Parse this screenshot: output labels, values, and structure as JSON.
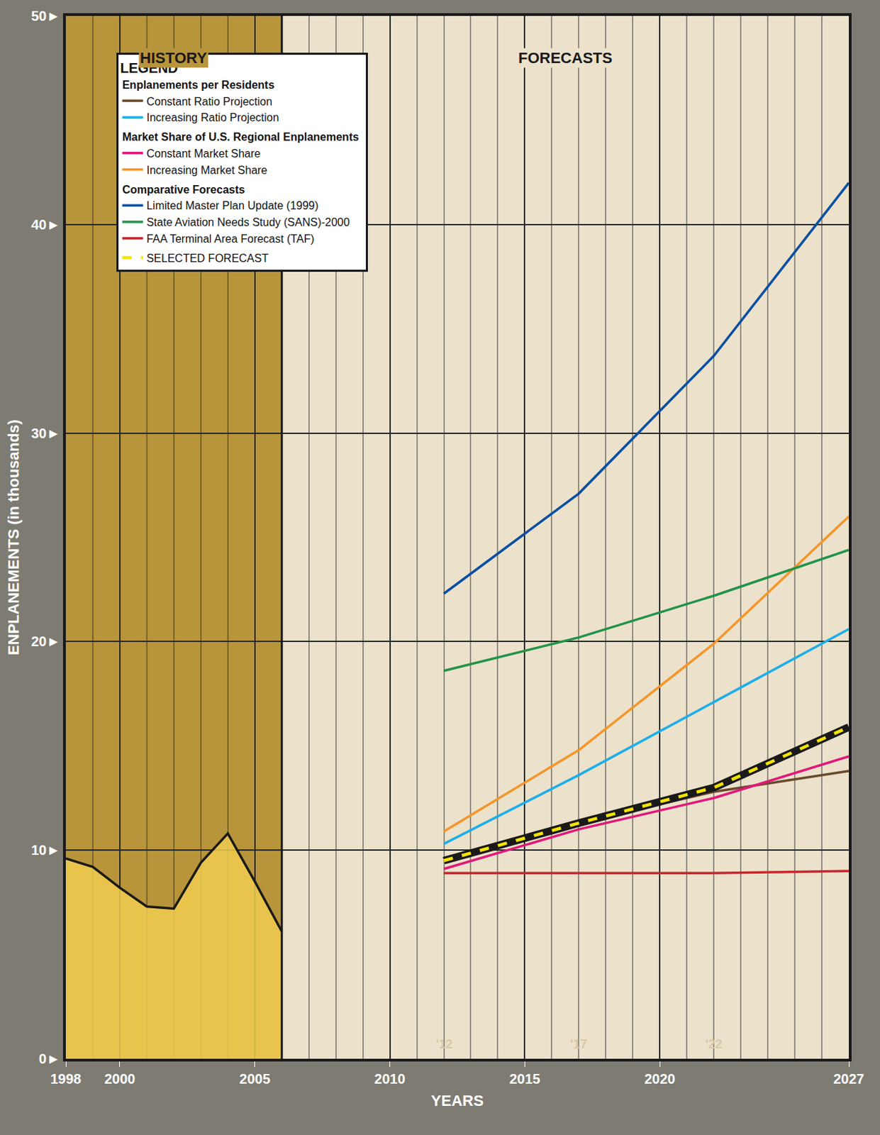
{
  "chart_data": {
    "type": "line",
    "x_label": "YEARS",
    "y_label": "ENPLANEMENTS (in thousands)",
    "xlim": [
      1998,
      2027
    ],
    "xticks": [
      1998,
      2000,
      2005,
      2010,
      2015,
      2020,
      2027
    ],
    "ylim": [
      0,
      50
    ],
    "yticks": [
      {
        "value": 0,
        "label": "0►"
      },
      {
        "value": 10,
        "label": "10►"
      },
      {
        "value": 20,
        "label": "20►"
      },
      {
        "value": 30,
        "label": "30►"
      },
      {
        "value": 40,
        "label": "40►"
      },
      {
        "value": 50,
        "label": "50►"
      }
    ],
    "grid": true,
    "legend": "upper left",
    "legend_title": "LEGEND",
    "history": {
      "color": "#1a1a1a",
      "x": [
        1998,
        1999,
        2000,
        2001,
        2002,
        2003,
        2004,
        2005,
        2006
      ],
      "values": [
        9.6,
        9.2,
        8.2,
        7.3,
        7.2,
        9.4,
        10.8,
        8.5,
        6.1
      ]
    },
    "series": [
      {
        "name": "Constant Ratio Projection",
        "group": "Enplanements per Residents",
        "color": "#6b4a2e",
        "line_style": "solid",
        "x": [
          2012,
          2017,
          2022,
          2027
        ],
        "values": [
          9.5,
          11.3,
          12.8,
          13.8
        ]
      },
      {
        "name": "Increasing Ratio Projection",
        "group": "Enplanements per Residents",
        "color": "#1eaee8",
        "line_style": "solid",
        "x": [
          2012,
          2017,
          2022,
          2027
        ],
        "values": [
          10.3,
          13.6,
          17.1,
          20.6
        ]
      },
      {
        "name": "Constant Market Share",
        "group": "Market Share of U.S. Regional Enplanements",
        "color": "#e0197a",
        "line_style": "solid",
        "x": [
          2012,
          2017,
          2022,
          2027
        ],
        "values": [
          9.1,
          11.0,
          12.5,
          14.5
        ]
      },
      {
        "name": "Increasing Market Share",
        "group": "Market Share of U.S. Regional Enplanements",
        "color": "#f4962a",
        "line_style": "solid",
        "x": [
          2012,
          2017,
          2022,
          2027
        ],
        "values": [
          10.9,
          14.8,
          19.9,
          26.0
        ]
      },
      {
        "name": "Limited Master Plan Update (1999)",
        "group": "Comparative Forecasts",
        "color": "#0b4fa3",
        "line_style": "solid",
        "x": [
          2012,
          2017,
          2022,
          2027
        ],
        "values": [
          22.3,
          27.1,
          33.7,
          42.0
        ]
      },
      {
        "name": "State Aviation Needs Study (SANS)-2000",
        "group": "Comparative Forecasts",
        "color": "#23934a",
        "line_style": "solid",
        "x": [
          2012,
          2017,
          2022,
          2027
        ],
        "values": [
          18.6,
          20.2,
          22.2,
          24.4
        ]
      },
      {
        "name": "FAA Terminal Area Forecast (TAF)",
        "group": "Comparative Forecasts",
        "color": "#c8282e",
        "line_style": "solid",
        "x": [
          2012,
          2017,
          2022,
          2027
        ],
        "values": [
          8.9,
          8.9,
          8.9,
          9.0
        ]
      },
      {
        "name": "SELECTED FORECAST",
        "color": "#f5e400",
        "line_style": "dashed",
        "x": [
          2012,
          2017,
          2022,
          2027
        ],
        "values": [
          9.5,
          11.3,
          13.0,
          15.9
        ]
      }
    ],
    "annotations": [
      {
        "text": "HISTORY",
        "x": 2002,
        "y": 48
      },
      {
        "text": "FORECASTS",
        "x": 2016.5,
        "y": 48
      },
      {
        "text": "'12",
        "x": 2012,
        "y": 0.7
      },
      {
        "text": "'17",
        "x": 2017,
        "y": 0.7
      },
      {
        "text": "'22",
        "x": 2022,
        "y": 0.7
      }
    ]
  }
}
